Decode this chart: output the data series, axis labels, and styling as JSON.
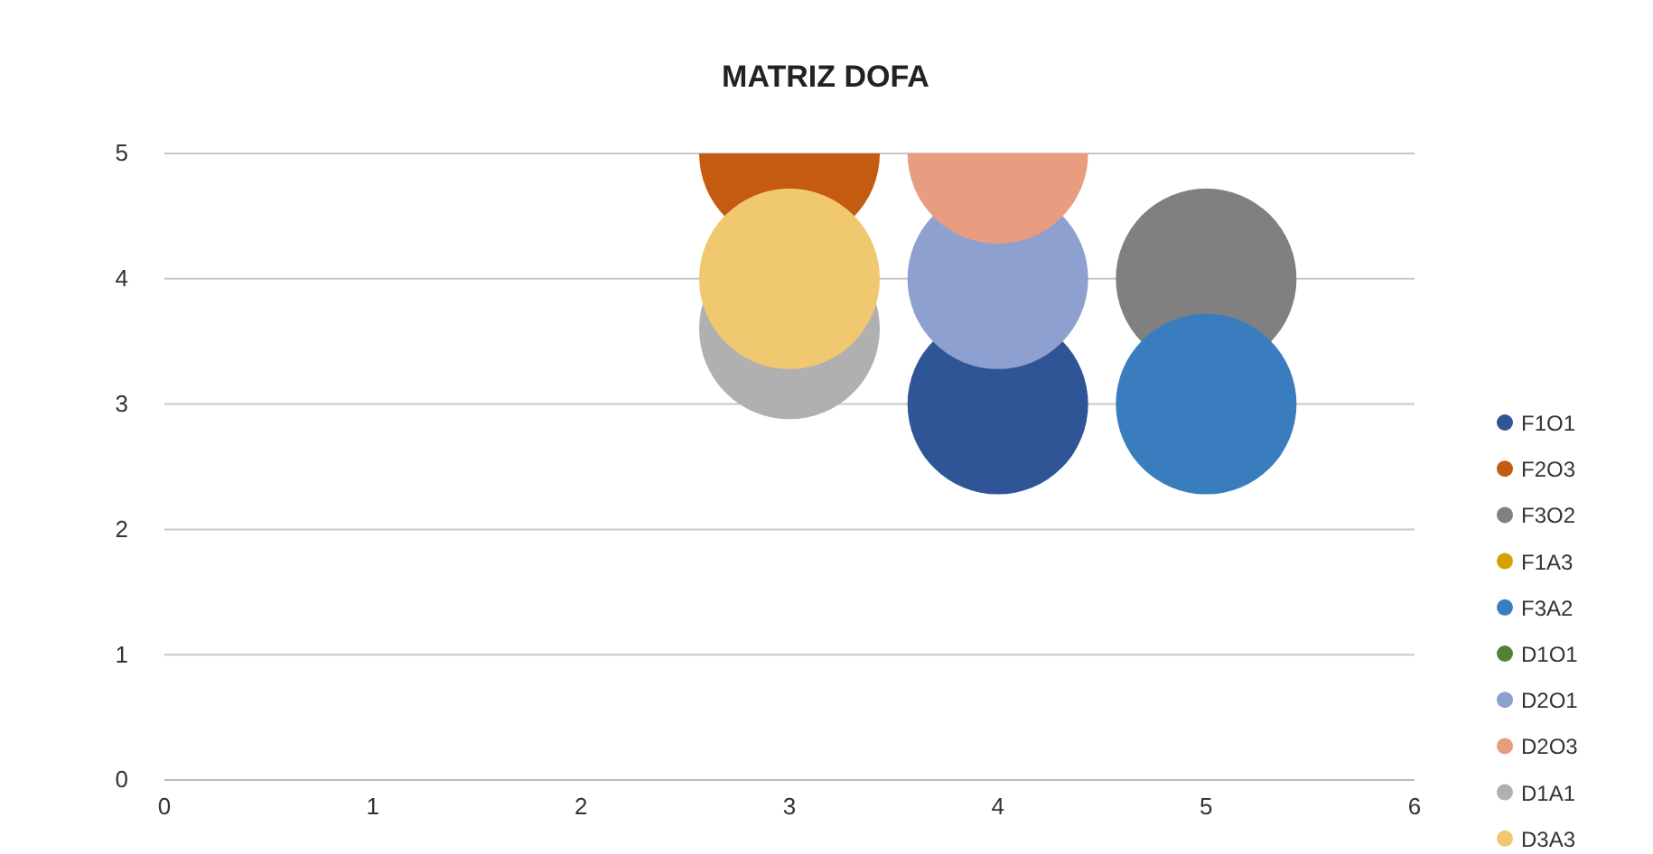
{
  "chart_data": {
    "type": "bubble",
    "title": "MATRIZ DOFA",
    "xlim": [
      0,
      6
    ],
    "xticks": [
      0,
      1,
      2,
      3,
      4,
      5,
      6
    ],
    "ylim": [
      0,
      5
    ],
    "yticks": [
      0,
      1,
      2,
      3,
      4,
      5
    ],
    "grid": "y",
    "legend": "right",
    "series": [
      {
        "name": "F1O1",
        "color": "#2f5597",
        "x": [
          4
        ],
        "values": [
          3
        ],
        "sizes": [
          1
        ]
      },
      {
        "name": "F2O3",
        "color": "#c55a11",
        "x": [
          3
        ],
        "values": [
          5
        ],
        "sizes": [
          1
        ]
      },
      {
        "name": "F3O2",
        "color": "#808080",
        "x": [
          5
        ],
        "values": [
          4
        ],
        "sizes": [
          1
        ]
      },
      {
        "name": "F1A3",
        "color": "#d6a100"
      },
      {
        "name": "F3A2",
        "color": "#3a7dbf",
        "x": [
          5
        ],
        "values": [
          3
        ],
        "sizes": [
          1
        ]
      },
      {
        "name": "D1O1",
        "color": "#548235"
      },
      {
        "name": "D2O1",
        "color": "#8ea0d0",
        "x": [
          4
        ],
        "values": [
          4
        ],
        "sizes": [
          1
        ]
      },
      {
        "name": "D2O3",
        "color": "#e89c80",
        "x": [
          4
        ],
        "values": [
          5
        ],
        "sizes": [
          1
        ]
      },
      {
        "name": "D1A1",
        "color": "#b0b0b0",
        "x": [
          3
        ],
        "values": [
          3.6
        ],
        "sizes": [
          1
        ]
      },
      {
        "name": "D3A3",
        "color": "#f0c870",
        "x": [
          3
        ],
        "values": [
          4
        ],
        "sizes": [
          1
        ]
      }
    ]
  }
}
